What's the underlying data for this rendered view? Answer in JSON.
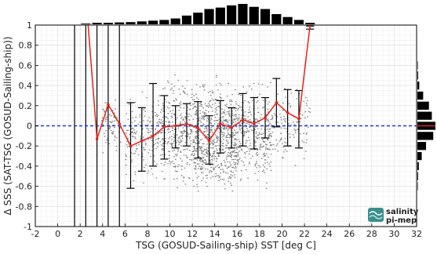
{
  "chart_data": {
    "type": "scatter",
    "xlabel": "TSG (GOSUD-Sailing-ship) SST [deg C]",
    "ylabel": "Δ SSS (SAT-TSG (GOSUD-Sailing-ship))",
    "xlim": [
      -2,
      32
    ],
    "ylim": [
      -1,
      1
    ],
    "x_ticks": [
      -2,
      0,
      2,
      4,
      6,
      8,
      10,
      12,
      14,
      16,
      18,
      20,
      22,
      24,
      26,
      28,
      30,
      32
    ],
    "y_ticks": [
      -1,
      -0.8,
      -0.6,
      -0.4,
      -0.2,
      0,
      0.2,
      0.4,
      0.6,
      0.8,
      1
    ],
    "grid": true,
    "reference_line": {
      "y": 0,
      "style": "dashed",
      "color": "#1f3fd6"
    },
    "series": [
      {
        "type": "line",
        "color": "#e0231d",
        "x": [
          2.5,
          3.5,
          4.5,
          5.5,
          6.5,
          7.5,
          8.5,
          9.5,
          10.5,
          11.5,
          12.5,
          13.5,
          14.5,
          15.5,
          16.5,
          17.5,
          18.5,
          19.5,
          20.5,
          21.5,
          22.5
        ],
        "mean": [
          1.3,
          -0.13,
          0.21,
          0.02,
          -0.2,
          -0.15,
          -0.1,
          -0.01,
          0.0,
          0.02,
          -0.02,
          -0.15,
          0.02,
          -0.02,
          0.06,
          0.02,
          0.08,
          0.23,
          0.13,
          0.07,
          1.0
        ],
        "err_low": [
          null,
          null,
          null,
          null,
          -0.62,
          -0.45,
          -0.4,
          -0.33,
          -0.22,
          -0.2,
          -0.32,
          -0.38,
          -0.27,
          -0.22,
          -0.2,
          -0.23,
          -0.12,
          -0.01,
          -0.2,
          -0.22,
          0.96
        ],
        "err_high": [
          null,
          null,
          null,
          null,
          0.23,
          0.18,
          0.42,
          0.3,
          0.2,
          0.22,
          0.24,
          0.1,
          0.25,
          0.18,
          0.32,
          0.28,
          0.28,
          0.47,
          0.36,
          0.35,
          0.99
        ]
      }
    ],
    "full_range_bins_x": [
      1.5,
      2.5,
      3.5,
      4.5,
      5.5
    ],
    "top_histogram": {
      "bins": [
        2.5,
        3.5,
        4.5,
        5.5,
        6.5,
        7.5,
        8.5,
        9.5,
        10.5,
        11.5,
        12.5,
        13.5,
        14.5,
        15.5,
        16.5,
        17.5,
        18.5,
        19.5,
        20.5,
        21.5,
        22.5
      ],
      "values": [
        0.5,
        1,
        1,
        1.3,
        1.5,
        2,
        2.5,
        3,
        4,
        6,
        8,
        10.5,
        11.5,
        13,
        14,
        12,
        10.5,
        7,
        5,
        3,
        1
      ]
    },
    "right_histogram": {
      "y_bins": [
        0.6,
        0.5,
        0.4,
        0.3,
        0.2,
        0.1,
        0.0,
        -0.1,
        -0.2,
        -0.3,
        -0.4,
        -0.5,
        -0.6
      ],
      "values": [
        0.3,
        0.5,
        1.3,
        4,
        8,
        10,
        12.5,
        11,
        6,
        3,
        1,
        0.5,
        0.3
      ]
    },
    "scatter_clusters": [
      {
        "x": [
          3.8,
          5.6
        ],
        "y": [
          -0.35,
          0.35
        ],
        "count": 70
      },
      {
        "x": [
          6,
          9
        ],
        "y": [
          -0.65,
          0.45
        ],
        "count": 160
      },
      {
        "x": [
          9,
          12
        ],
        "y": [
          -0.7,
          0.6
        ],
        "count": 320
      },
      {
        "x": [
          12,
          16
        ],
        "y": [
          -0.85,
          0.6
        ],
        "count": 700
      },
      {
        "x": [
          16,
          19
        ],
        "y": [
          -0.7,
          0.55
        ],
        "count": 320
      },
      {
        "x": [
          19,
          22.5
        ],
        "y": [
          -0.45,
          0.5
        ],
        "count": 120
      }
    ]
  },
  "colors": {
    "mean_line": "#e0231d",
    "scatter": "#7a7a7a",
    "bars": "#000000",
    "zero_line": "#1f3fd6",
    "logo": "#3a8f8c"
  },
  "logo": {
    "name": "salinity pi-mep",
    "icon": "wave-icon"
  }
}
